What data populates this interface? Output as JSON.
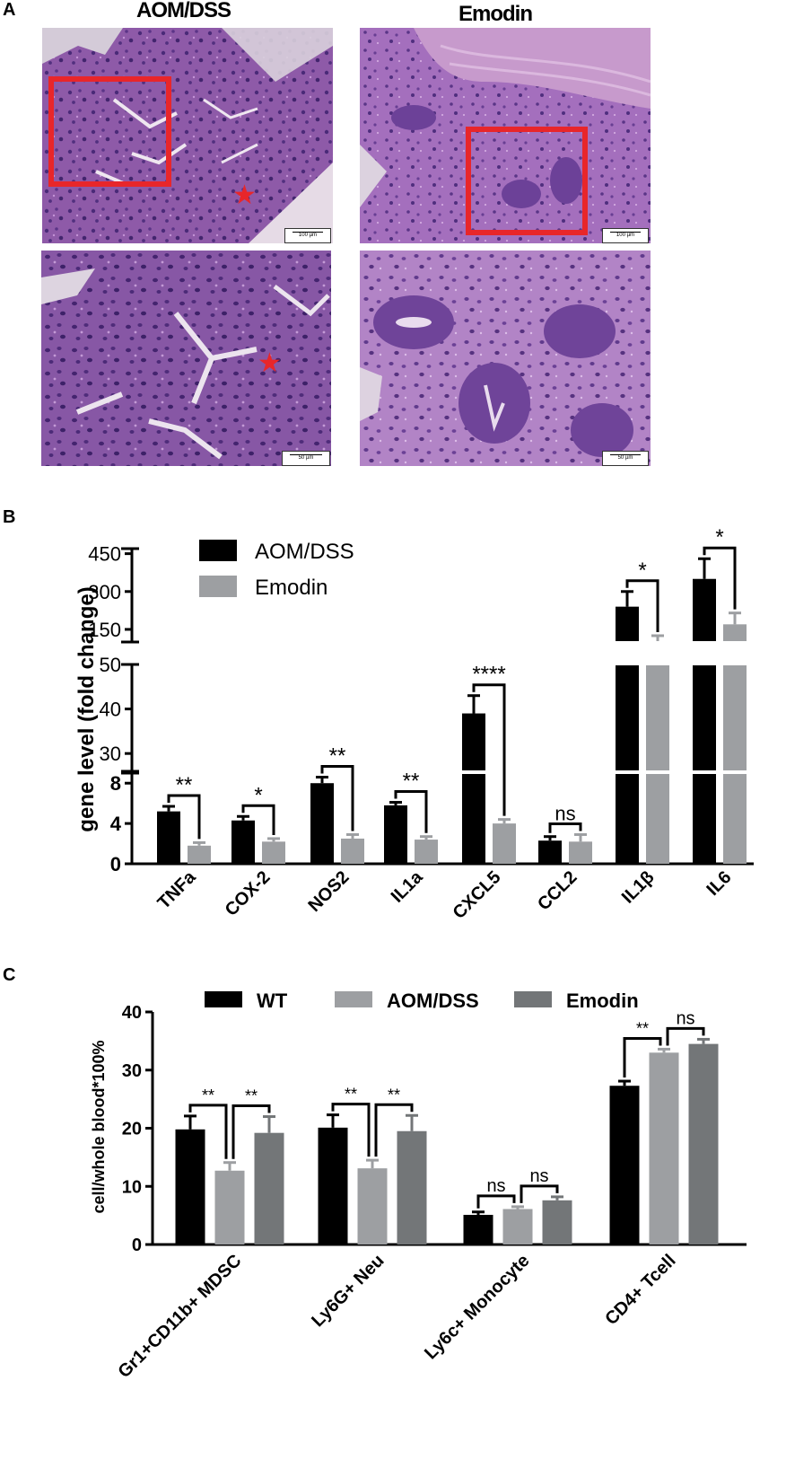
{
  "panel_a": {
    "letter": "A",
    "col_titles": [
      "AOM/DSS",
      "Emodin"
    ],
    "scalebars": [
      "100 µm",
      "100 µm",
      "50 µm",
      "50 µm"
    ]
  },
  "panel_b": {
    "letter": "B"
  },
  "panel_c": {
    "letter": "C"
  },
  "colors": {
    "aom_black": "#000000",
    "emodin_gray": "#9d9fa2",
    "c_wt": "#000000",
    "c_aom": "#9d9fa2",
    "c_emodin": "#737678",
    "tissue_purple": "#9a63b3",
    "red_box": "#e8262a"
  },
  "chart_data": [
    {
      "type": "bar",
      "ylabel": "gene level (fold change)",
      "categories": [
        "TNFa",
        "COX-2",
        "NOS2",
        "IL1a",
        "CXCL5",
        "CCL2",
        "IL1β",
        "IL6"
      ],
      "series": [
        {
          "name": "AOM/DSS",
          "values": [
            5.2,
            4.3,
            8.0,
            5.8,
            39,
            2.3,
            240,
            350
          ],
          "errors": [
            0.5,
            0.4,
            0.6,
            0.3,
            4,
            0.4,
            60,
            80
          ]
        },
        {
          "name": "Emodin",
          "values": [
            1.8,
            2.2,
            2.5,
            2.4,
            4.0,
            2.2,
            100,
            170
          ],
          "errors": [
            0.3,
            0.3,
            0.4,
            0.3,
            0.4,
            0.7,
            25,
            45
          ]
        }
      ],
      "axis_segments": [
        {
          "ylim": [
            0,
            9
          ],
          "ticks": [
            "0",
            "4",
            "8"
          ]
        },
        {
          "ylim": [
            26,
            50
          ],
          "ticks": [
            "30",
            "40",
            "50"
          ]
        },
        {
          "ylim": [
            100,
            470
          ],
          "ticks": [
            "150",
            "300",
            "450"
          ]
        }
      ],
      "significance": [
        "**",
        "*",
        "**",
        "**",
        "****",
        "ns",
        "*",
        "*"
      ],
      "legend_position": "top-left"
    },
    {
      "type": "bar",
      "ylabel": "cell/whole blood*100%",
      "categories": [
        "Gr1+CD11b+ MDSC",
        "Ly6G+ Neu",
        "Ly6c+ Monocyte",
        "CD4+ Tcell"
      ],
      "series": [
        {
          "name": "WT",
          "values": [
            19.8,
            20.1,
            5.1,
            27.3
          ],
          "errors": [
            2.3,
            2.2,
            0.5,
            0.8
          ]
        },
        {
          "name": "AOM/DSS",
          "values": [
            12.7,
            13.1,
            6.1,
            33.0
          ],
          "errors": [
            1.4,
            1.4,
            0.4,
            0.6
          ]
        },
        {
          "name": "Emodin",
          "values": [
            19.2,
            19.5,
            7.6,
            34.5
          ],
          "errors": [
            2.8,
            2.7,
            0.6,
            0.8
          ]
        }
      ],
      "ylim": [
        0,
        40
      ],
      "yticks": [
        "0",
        "10",
        "20",
        "30",
        "40"
      ],
      "significance": [
        [
          "**",
          "**"
        ],
        [
          "**",
          "**"
        ],
        [
          "ns",
          "ns"
        ],
        [
          "**",
          "ns"
        ]
      ],
      "legend_position": "top"
    }
  ]
}
